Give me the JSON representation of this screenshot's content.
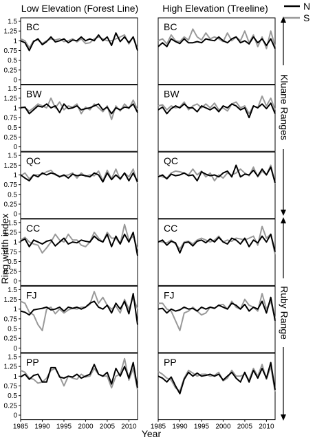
{
  "chart_data": {
    "type": "line",
    "column_titles": [
      "Low Elevation (Forest  Line)",
      "High Elevation (Treeline)"
    ],
    "xlabel": "Year",
    "ylabel": "Ring width index",
    "xlim": [
      1985,
      2012
    ],
    "ylim": [
      0,
      1.5
    ],
    "x_ticks": [
      1985,
      1990,
      1995,
      2000,
      2005,
      2010
    ],
    "y_ticks": [
      "0",
      "0.25",
      "0.5",
      "0.75",
      "1",
      "1.25",
      "1.5"
    ],
    "legend": {
      "placement": "top-right",
      "entries": [
        {
          "label": "N",
          "color": "#000000"
        },
        {
          "label": "S",
          "color": "#999999"
        }
      ]
    },
    "range_labels": [
      {
        "label": "Kluane Ranges",
        "rows": [
          0,
          1,
          2
        ]
      },
      {
        "label": "Ruby Range",
        "rows": [
          3,
          4,
          5
        ]
      }
    ],
    "series_colors": {
      "N": "#000000",
      "S": "#999999"
    },
    "years": [
      1985,
      1986,
      1987,
      1988,
      1989,
      1990,
      1991,
      1992,
      1993,
      1994,
      1995,
      1996,
      1997,
      1998,
      1999,
      2000,
      2001,
      2002,
      2003,
      2004,
      2005,
      2006,
      2007,
      2008,
      2009,
      2010,
      2011,
      2012
    ],
    "panels": [
      {
        "site": "BC",
        "column": "low",
        "N": [
          1.0,
          0.95,
          0.75,
          0.98,
          1.05,
          0.9,
          0.98,
          1.1,
          0.97,
          1.0,
          1.05,
          0.95,
          1.02,
          1.0,
          1.1,
          1.0,
          1.05,
          1.0,
          1.15,
          1.0,
          1.1,
          0.88,
          1.2,
          0.98,
          1.1,
          0.95,
          1.1,
          0.75
        ],
        "S": [
          1.05,
          1.0,
          0.82,
          1.0,
          1.02,
          0.93,
          1.0,
          1.05,
          1.02,
          1.05,
          0.98,
          1.0,
          1.05,
          0.97,
          1.05,
          0.93,
          0.95,
          1.05,
          1.1,
          1.05,
          1.0,
          1.0,
          1.05,
          1.1,
          1.15,
          0.92,
          1.1,
          0.8
        ]
      },
      {
        "site": "BC",
        "column": "high",
        "N": [
          0.85,
          0.95,
          0.85,
          1.05,
          0.98,
          0.93,
          1.05,
          0.95,
          0.95,
          0.98,
          0.95,
          1.05,
          1.02,
          1.0,
          1.1,
          1.0,
          0.95,
          1.05,
          1.1,
          0.95,
          1.0,
          0.92,
          1.1,
          0.95,
          1.05,
          0.88,
          1.05,
          0.8
        ],
        "S": [
          1.0,
          1.05,
          0.92,
          1.15,
          1.0,
          0.98,
          1.1,
          1.02,
          1.3,
          1.1,
          1.02,
          1.2,
          1.05,
          1.1,
          1.05,
          0.98,
          1.2,
          1.0,
          1.1,
          1.0,
          1.25,
          0.95,
          1.15,
          0.85,
          1.1,
          0.8,
          1.25,
          0.85
        ]
      },
      {
        "site": "BW",
        "column": "low",
        "N": [
          1.0,
          1.02,
          0.85,
          0.95,
          1.05,
          1.02,
          1.1,
          1.0,
          1.05,
          0.88,
          1.1,
          0.98,
          1.0,
          1.05,
          0.95,
          0.98,
          1.0,
          1.05,
          1.1,
          0.95,
          1.02,
          0.85,
          1.0,
          0.95,
          1.02,
          1.0,
          1.1,
          0.88
        ],
        "S": [
          1.02,
          1.0,
          0.92,
          1.0,
          1.1,
          1.05,
          1.0,
          1.25,
          1.0,
          1.15,
          0.95,
          1.05,
          1.02,
          1.1,
          0.85,
          1.02,
          0.95,
          1.1,
          1.0,
          0.9,
          1.05,
          0.7,
          1.05,
          0.92,
          1.1,
          0.98,
          1.2,
          0.95
        ]
      },
      {
        "site": "BW",
        "column": "high",
        "N": [
          0.95,
          1.02,
          0.85,
          0.98,
          1.05,
          1.0,
          1.1,
          1.0,
          1.0,
          0.9,
          1.05,
          1.0,
          0.95,
          1.02,
          0.9,
          1.05,
          1.0,
          1.1,
          1.05,
          0.95,
          1.0,
          0.75,
          1.05,
          1.0,
          1.1,
          0.98,
          1.12,
          0.85
        ],
        "S": [
          1.05,
          1.08,
          0.95,
          1.05,
          1.0,
          1.02,
          1.15,
          0.95,
          1.05,
          1.1,
          1.0,
          1.1,
          1.0,
          1.12,
          0.95,
          1.0,
          0.92,
          1.1,
          1.15,
          1.0,
          1.05,
          0.85,
          1.05,
          1.0,
          1.3,
          1.05,
          1.25,
          0.95
        ]
      },
      {
        "site": "QC",
        "column": "low",
        "N": [
          1.0,
          0.92,
          0.85,
          1.0,
          0.95,
          1.05,
          1.0,
          1.05,
          1.02,
          0.95,
          1.0,
          0.92,
          1.02,
          0.98,
          1.0,
          0.98,
          0.95,
          1.05,
          1.0,
          0.82,
          1.05,
          0.88,
          1.0,
          0.9,
          1.05,
          0.85,
          1.05,
          0.82
        ],
        "S": [
          0.98,
          1.05,
          0.9,
          1.0,
          1.0,
          1.02,
          1.08,
          1.12,
          1.0,
          0.97,
          0.98,
          1.0,
          1.05,
          0.92,
          1.05,
          0.96,
          1.0,
          0.98,
          1.1,
          0.85,
          1.12,
          0.9,
          1.15,
          0.88,
          1.05,
          0.95,
          1.15,
          0.78
        ]
      },
      {
        "site": "QC",
        "column": "high",
        "N": [
          0.95,
          1.0,
          0.9,
          1.02,
          0.98,
          1.0,
          1.05,
          0.98,
          1.0,
          0.85,
          1.08,
          1.02,
          0.98,
          1.0,
          0.95,
          1.05,
          1.1,
          0.95,
          1.25,
          0.95,
          1.02,
          1.0,
          1.12,
          0.97,
          1.15,
          1.0,
          1.2,
          0.8
        ],
        "S": [
          1.0,
          0.95,
          0.92,
          1.05,
          1.1,
          1.08,
          1.05,
          1.0,
          1.15,
          1.0,
          1.1,
          0.95,
          1.05,
          0.85,
          1.0,
          0.92,
          1.05,
          1.0,
          1.05,
          1.15,
          1.05,
          0.98,
          1.2,
          0.95,
          1.1,
          1.0,
          1.25,
          0.78
        ]
      },
      {
        "site": "CC",
        "column": "low",
        "N": [
          1.02,
          1.08,
          0.88,
          1.05,
          1.0,
          0.95,
          1.02,
          1.05,
          0.9,
          1.0,
          1.1,
          0.95,
          1.0,
          0.98,
          1.05,
          1.02,
          1.0,
          1.15,
          1.05,
          1.0,
          1.2,
          0.88,
          1.15,
          0.95,
          1.2,
          1.0,
          1.25,
          0.65
        ],
        "S": [
          1.05,
          1.12,
          1.0,
          0.95,
          0.92,
          0.72,
          0.85,
          1.0,
          1.2,
          1.05,
          1.0,
          1.2,
          1.05,
          1.05,
          0.92,
          0.88,
          1.0,
          1.25,
          1.1,
          1.0,
          1.25,
          1.1,
          1.1,
          0.95,
          1.45,
          1.05,
          1.15,
          0.82
        ]
      },
      {
        "site": "CC",
        "column": "high",
        "N": [
          1.0,
          1.05,
          0.92,
          1.02,
          0.98,
          0.72,
          0.98,
          1.0,
          0.9,
          1.02,
          1.05,
          0.98,
          1.08,
          1.0,
          1.12,
          1.0,
          0.95,
          1.1,
          1.05,
          0.95,
          1.1,
          0.88,
          1.05,
          0.98,
          1.15,
          1.0,
          1.2,
          0.75
        ],
        "S": [
          1.02,
          1.0,
          0.98,
          1.05,
          0.95,
          0.82,
          1.0,
          1.02,
          0.95,
          1.05,
          1.1,
          1.05,
          1.0,
          1.05,
          1.15,
          1.0,
          1.05,
          1.02,
          1.1,
          1.08,
          1.05,
          1.1,
          1.15,
          0.92,
          1.4,
          1.1,
          1.2,
          0.68
        ]
      },
      {
        "site": "FJ",
        "column": "low",
        "N": [
          0.95,
          0.92,
          0.85,
          0.98,
          1.0,
          1.02,
          1.05,
          0.98,
          1.0,
          1.05,
          0.95,
          1.05,
          1.02,
          1.05,
          1.0,
          1.05,
          1.15,
          1.2,
          1.05,
          1.0,
          1.1,
          0.9,
          1.15,
          1.0,
          1.2,
          0.88,
          1.4,
          0.6
        ],
        "S": [
          1.2,
          1.15,
          0.92,
          0.85,
          0.6,
          0.45,
          1.0,
          1.05,
          0.88,
          1.0,
          0.9,
          0.98,
          1.02,
          1.0,
          1.05,
          1.05,
          1.12,
          1.45,
          1.15,
          1.3,
          1.1,
          1.0,
          1.08,
          0.9,
          1.25,
          1.0,
          1.3,
          1.0
        ]
      },
      {
        "site": "FJ",
        "column": "high",
        "N": [
          1.0,
          1.02,
          0.9,
          1.0,
          0.95,
          0.98,
          1.05,
          1.0,
          1.02,
          0.95,
          1.05,
          1.0,
          1.05,
          1.02,
          1.1,
          1.05,
          1.0,
          1.15,
          1.1,
          1.0,
          1.12,
          0.95,
          1.05,
          1.0,
          1.2,
          0.9,
          1.3,
          0.7
        ],
        "S": [
          1.15,
          1.15,
          1.0,
          0.95,
          0.7,
          0.45,
          0.9,
          0.95,
          1.05,
          0.95,
          0.85,
          0.9,
          1.05,
          1.02,
          1.1,
          1.12,
          1.0,
          1.2,
          1.05,
          1.0,
          1.25,
          1.1,
          1.05,
          0.95,
          1.4,
          1.0,
          1.2,
          0.75
        ]
      },
      {
        "site": "PP",
        "column": "low",
        "N": [
          0.98,
          1.05,
          0.92,
          1.02,
          1.05,
          0.85,
          0.85,
          1.22,
          1.22,
          0.98,
          0.95,
          1.0,
          0.98,
          1.05,
          0.95,
          1.0,
          1.05,
          1.3,
          1.05,
          1.0,
          1.1,
          0.8,
          1.2,
          1.0,
          1.25,
          0.95,
          1.35,
          0.7
        ],
        "S": [
          1.15,
          1.1,
          0.95,
          0.92,
          0.82,
          0.85,
          0.95,
          1.15,
          1.2,
          1.0,
          0.75,
          1.0,
          0.95,
          0.92,
          1.05,
          0.98,
          1.0,
          1.2,
          1.05,
          1.0,
          1.0,
          0.7,
          1.0,
          1.05,
          1.45,
          0.9,
          1.2,
          0.65
        ]
      },
      {
        "site": "PP",
        "column": "high",
        "N": [
          1.0,
          0.95,
          0.85,
          0.98,
          0.75,
          0.55,
          0.92,
          1.1,
          1.0,
          1.08,
          1.0,
          1.02,
          1.05,
          1.0,
          1.05,
          0.9,
          1.0,
          1.1,
          0.95,
          0.85,
          1.1,
          0.85,
          1.15,
          0.95,
          1.2,
          0.95,
          1.35,
          0.65
        ],
        "S": [
          1.12,
          1.05,
          0.95,
          0.9,
          0.7,
          0.62,
          0.95,
          1.15,
          1.08,
          1.0,
          1.05,
          1.05,
          1.0,
          1.02,
          1.1,
          0.88,
          0.95,
          1.15,
          1.0,
          1.0,
          1.05,
          0.9,
          1.2,
          1.0,
          1.3,
          0.92,
          1.25,
          0.6
        ]
      }
    ]
  }
}
